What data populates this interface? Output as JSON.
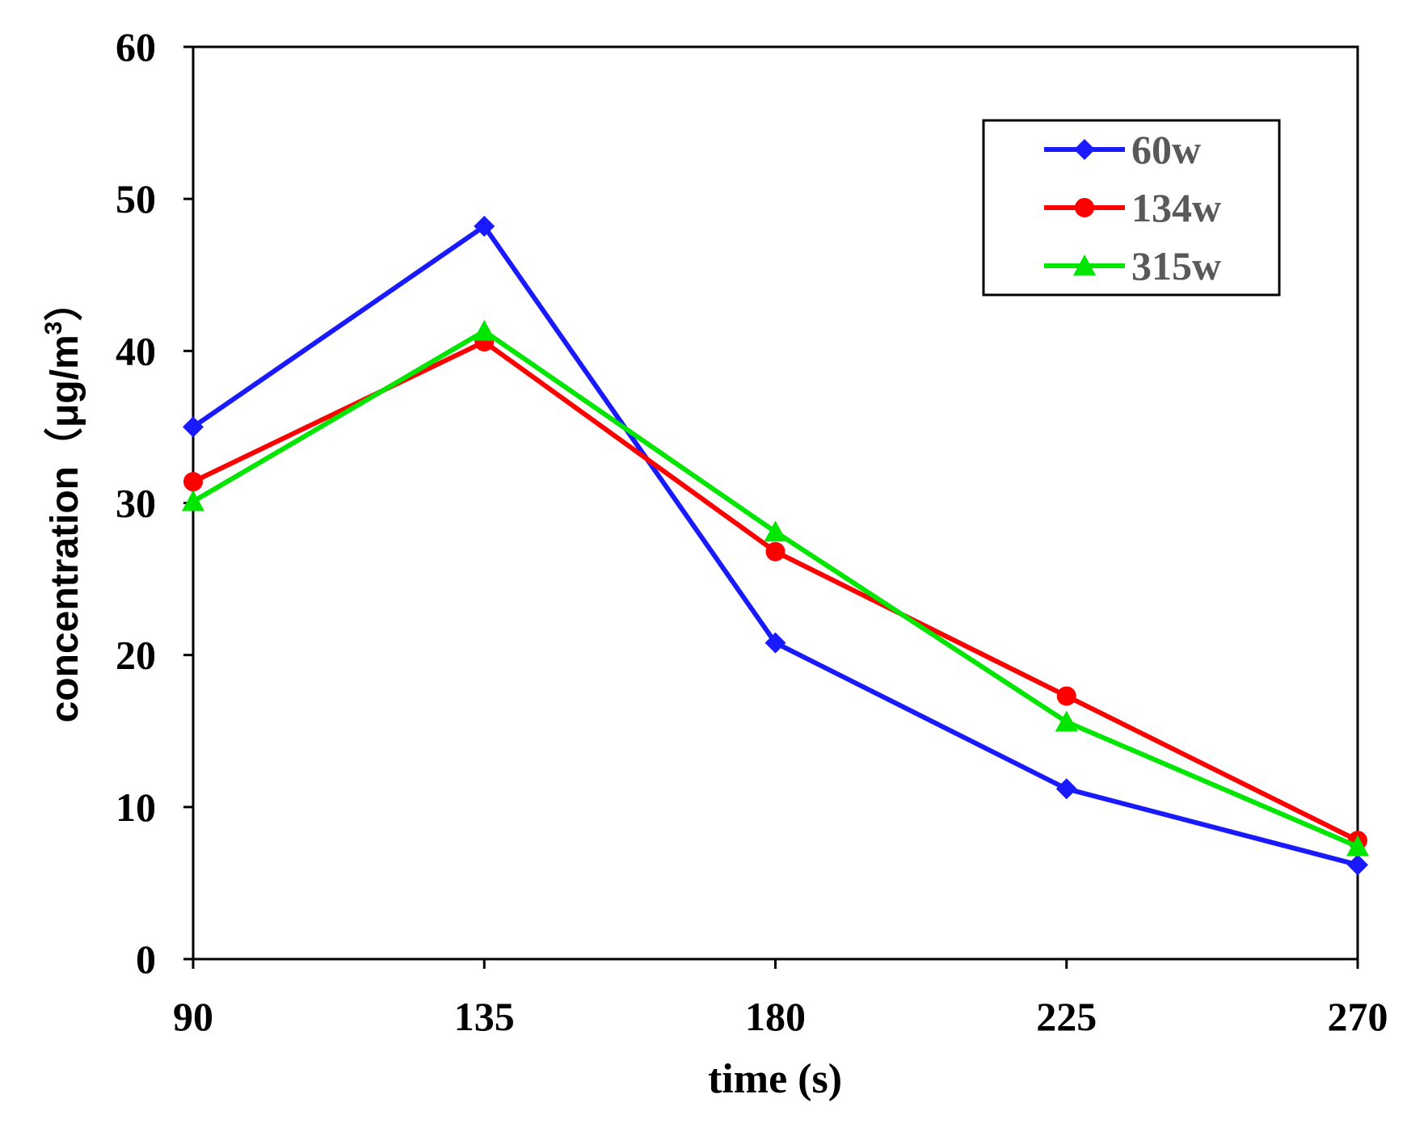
{
  "chart_data": {
    "type": "line",
    "title": "",
    "xlabel": "time (s)",
    "ylabel": {
      "prefix": "concentration（μg/m",
      "sup": "3",
      "suffix": "）"
    },
    "x": [
      90,
      135,
      180,
      225,
      270
    ],
    "xticks": [
      "90",
      "135",
      "180",
      "225",
      "270"
    ],
    "xlim": [
      90,
      270
    ],
    "yticks": [
      "0",
      "10",
      "20",
      "30",
      "40",
      "50",
      "60"
    ],
    "ylim": [
      0,
      60
    ],
    "grid": false,
    "legend_position": "top-right",
    "series": [
      {
        "name": "60w",
        "color": "#1a1aff",
        "marker": "diamond",
        "values": [
          35.0,
          48.2,
          20.8,
          11.2,
          6.2
        ]
      },
      {
        "name": "134w",
        "color": "#ff0000",
        "marker": "circle",
        "values": [
          31.4,
          40.6,
          26.8,
          17.3,
          7.8
        ]
      },
      {
        "name": "315w",
        "color": "#00e600",
        "marker": "triangle",
        "values": [
          30.1,
          41.3,
          28.1,
          15.6,
          7.4
        ]
      }
    ]
  }
}
